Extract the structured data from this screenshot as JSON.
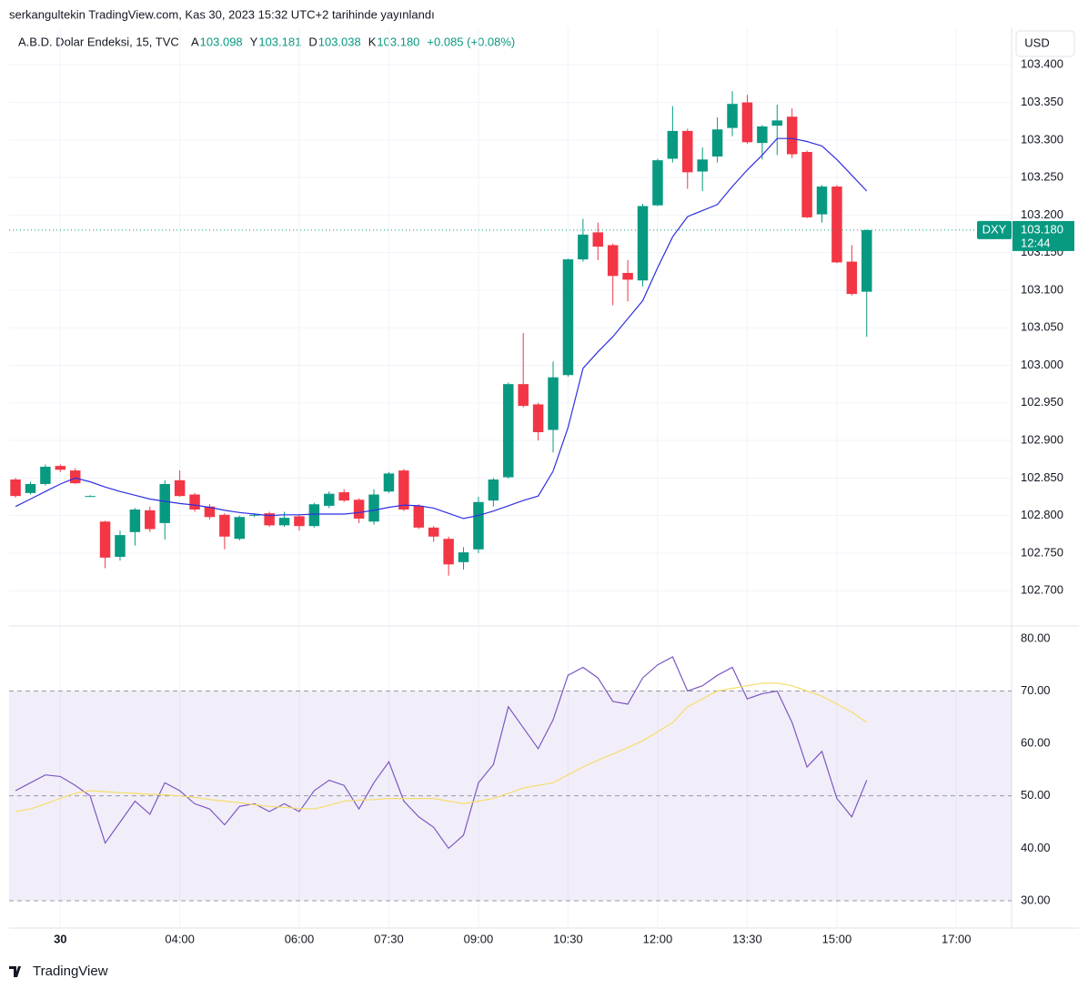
{
  "header": {
    "published": "serkangultekin TradingView.com, Kas 30, 2023 15:32 UTC+2 tarihinde yayınlandı",
    "currency": "USD",
    "brand": "TradingView"
  },
  "legend": {
    "title": "A.B.D. Dolar Endeksi, 15, TVC",
    "items": [
      {
        "label": "A",
        "value": "103.098"
      },
      {
        "label": "Y",
        "value": "103.181"
      },
      {
        "label": "D",
        "value": "103.038"
      },
      {
        "label": "K",
        "value": "103.180"
      }
    ],
    "change": "+0.085 (+0.08%)"
  },
  "chart_data": [
    {
      "type": "candlestick",
      "up_color": "#089981",
      "down_color": "#f23645",
      "xlim": [
        -0.43,
        66.7
      ],
      "xticks": [
        {
          "value": 3,
          "label": "30"
        },
        {
          "value": 11,
          "label": "04:00"
        },
        {
          "value": 19,
          "label": "06:00"
        },
        {
          "value": 25,
          "label": "07:30"
        },
        {
          "value": 31,
          "label": "09:00"
        },
        {
          "value": 37,
          "label": "10:30"
        },
        {
          "value": 43,
          "label": "12:00"
        },
        {
          "value": 49,
          "label": "13:30"
        },
        {
          "value": 55,
          "label": "15:00"
        },
        {
          "value": 63,
          "label": "17:00"
        }
      ],
      "ylim": [
        102.653,
        103.45
      ],
      "yticks": [
        {
          "value": 102.7,
          "label": "102.700"
        },
        {
          "value": 102.75,
          "label": "102.750"
        },
        {
          "value": 102.8,
          "label": "102.800"
        },
        {
          "value": 102.85,
          "label": "102.850"
        },
        {
          "value": 102.9,
          "label": "102.900"
        },
        {
          "value": 102.95,
          "label": "102.950"
        },
        {
          "value": 103.0,
          "label": "103.000"
        },
        {
          "value": 103.05,
          "label": "103.050"
        },
        {
          "value": 103.1,
          "label": "103.100"
        },
        {
          "value": 103.15,
          "label": "103.150"
        },
        {
          "value": 103.2,
          "label": "103.200"
        },
        {
          "value": 103.25,
          "label": "103.250"
        },
        {
          "value": 103.3,
          "label": "103.300"
        },
        {
          "value": 103.35,
          "label": "103.350"
        },
        {
          "value": 103.4,
          "label": "103.400"
        }
      ],
      "open": [
        102.848,
        102.83,
        102.842,
        102.866,
        102.86,
        102.826,
        102.792,
        102.745,
        102.778,
        102.807,
        102.79,
        102.847,
        102.828,
        102.812,
        102.801,
        102.769,
        102.8,
        102.803,
        102.787,
        102.799,
        102.786,
        102.813,
        102.831,
        102.821,
        102.792,
        102.832,
        102.86,
        102.813,
        102.784,
        102.769,
        102.738,
        102.755,
        102.82,
        102.851,
        102.975,
        102.948,
        102.914,
        102.987,
        103.141,
        103.177,
        103.16,
        103.123,
        103.113,
        103.213,
        103.275,
        103.312,
        103.258,
        103.278,
        103.316,
        103.35,
        103.296,
        103.319,
        103.331,
        103.284,
        103.201,
        103.238,
        103.138,
        103.098
      ],
      "high": [
        102.85,
        102.845,
        102.868,
        102.868,
        102.863,
        102.827,
        102.793,
        102.78,
        102.81,
        102.812,
        102.847,
        102.86,
        102.83,
        102.815,
        102.803,
        102.8,
        102.803,
        102.805,
        102.805,
        102.802,
        102.817,
        102.832,
        102.835,
        102.823,
        102.835,
        102.858,
        102.862,
        102.815,
        102.786,
        102.772,
        102.758,
        102.825,
        102.85,
        102.977,
        103.043,
        102.95,
        103.005,
        103.142,
        103.195,
        103.19,
        103.162,
        103.14,
        103.215,
        103.275,
        103.345,
        103.315,
        103.29,
        103.33,
        103.365,
        103.36,
        103.32,
        103.347,
        103.342,
        103.286,
        103.24,
        103.24,
        103.16,
        103.181
      ],
      "low": [
        102.824,
        102.828,
        102.84,
        102.858,
        102.842,
        102.825,
        102.73,
        102.74,
        102.76,
        102.778,
        102.768,
        102.825,
        102.805,
        102.795,
        102.755,
        102.767,
        102.798,
        102.785,
        102.785,
        102.78,
        102.784,
        102.81,
        102.818,
        102.79,
        102.788,
        102.83,
        102.806,
        102.782,
        102.765,
        102.72,
        102.728,
        102.75,
        102.812,
        102.849,
        102.944,
        102.9,
        102.884,
        102.985,
        103.138,
        103.14,
        103.08,
        103.085,
        103.105,
        103.212,
        103.27,
        103.235,
        103.232,
        103.27,
        103.305,
        103.295,
        103.274,
        103.28,
        103.276,
        103.196,
        103.19,
        103.136,
        103.093,
        103.038
      ],
      "close": [
        102.826,
        102.842,
        102.865,
        102.861,
        102.843,
        102.826,
        102.744,
        102.774,
        102.808,
        102.782,
        102.842,
        102.826,
        102.808,
        102.798,
        102.772,
        102.798,
        102.801,
        102.787,
        102.797,
        102.786,
        102.815,
        102.829,
        102.82,
        102.796,
        102.828,
        102.856,
        102.808,
        102.784,
        102.772,
        102.735,
        102.751,
        102.818,
        102.848,
        102.975,
        102.946,
        102.911,
        102.984,
        103.141,
        103.174,
        103.158,
        103.119,
        103.114,
        103.212,
        103.273,
        103.312,
        103.257,
        103.274,
        103.314,
        103.348,
        103.297,
        103.318,
        103.326,
        103.281,
        103.197,
        103.238,
        103.137,
        103.095,
        103.18
      ],
      "lines": [
        {
          "color": "#2f2fe0",
          "values": [
            102.812,
            102.822,
            102.832,
            102.842,
            102.85,
            102.845,
            102.838,
            102.832,
            102.827,
            102.822,
            102.819,
            102.816,
            102.814,
            102.811,
            102.807,
            102.804,
            102.802,
            102.8,
            102.801,
            102.801,
            102.802,
            102.802,
            102.802,
            102.804,
            102.807,
            102.811,
            102.814,
            102.813,
            102.81,
            102.803,
            102.796,
            102.8,
            102.806,
            102.813,
            102.82,
            102.826,
            102.859,
            102.917,
            102.996,
            103.018,
            103.038,
            103.062,
            103.086,
            103.13,
            103.171,
            103.198,
            103.206,
            103.214,
            103.238,
            103.26,
            103.28,
            103.302,
            103.302,
            103.298,
            103.292,
            103.274,
            103.253,
            103.232
          ]
        }
      ],
      "last_price": {
        "symbol": "DXY",
        "value": 103.18,
        "label": "103.180",
        "countdown": "12:44",
        "color": "#089981"
      }
    },
    {
      "type": "line",
      "ylim": [
        24.8,
        82.4
      ],
      "yticks": [
        {
          "value": 30,
          "label": "30.00"
        },
        {
          "value": 40,
          "label": "40.00"
        },
        {
          "value": 50,
          "label": "50.00"
        },
        {
          "value": 60,
          "label": "60.00"
        },
        {
          "value": 70,
          "label": "70.00"
        },
        {
          "value": 80,
          "label": "80.00"
        }
      ],
      "band": [
        30,
        70
      ],
      "midline": 50,
      "band_color": "#7e57c2",
      "series": [
        {
          "color": "#7e57c2",
          "values": [
            51,
            52.5,
            54,
            53.7,
            52,
            50,
            41,
            45,
            49,
            46.5,
            52.5,
            51,
            48.5,
            47.5,
            44.5,
            48,
            48.5,
            47,
            48.5,
            47,
            51,
            53,
            52,
            47.5,
            52.5,
            56.5,
            49,
            46,
            44,
            40,
            42.5,
            52.5,
            56,
            67,
            63,
            59,
            64.5,
            73,
            74.5,
            72.5,
            68,
            67.5,
            72.5,
            75,
            76.5,
            70,
            71,
            73,
            74.5,
            68.5,
            69.5,
            70,
            64,
            55.5,
            58.5,
            49.5,
            46,
            53
          ]
        },
        {
          "color": "#f5dd6a",
          "values": [
            47,
            47.5,
            48.5,
            49.5,
            50.5,
            51,
            50.8,
            50.6,
            50.5,
            50.3,
            50.2,
            50,
            49.7,
            49.3,
            49,
            48.7,
            48.3,
            48,
            47.8,
            47.6,
            47.5,
            48.2,
            49,
            49.2,
            49.3,
            49.5,
            49.5,
            49.5,
            49.5,
            49,
            48.5,
            49,
            49.5,
            50.5,
            51.5,
            52,
            52.5,
            54,
            55.5,
            56.8,
            58,
            59.2,
            60.5,
            62.2,
            64,
            67,
            68.5,
            70,
            70.5,
            71,
            71.5,
            71.5,
            71,
            70,
            69,
            67.5,
            66,
            64
          ]
        }
      ]
    }
  ]
}
